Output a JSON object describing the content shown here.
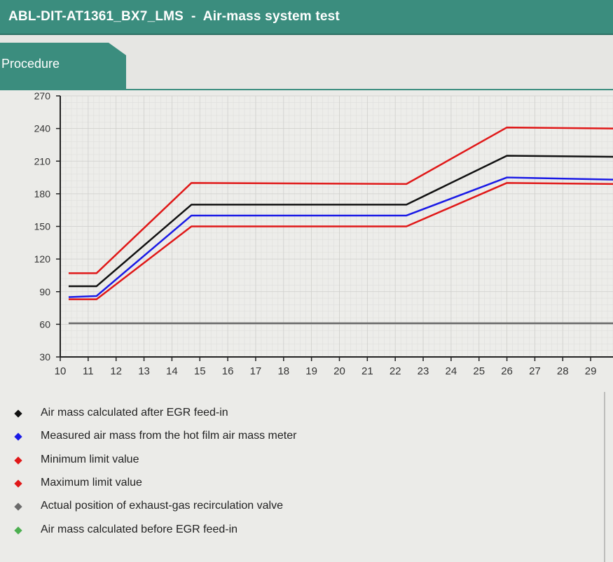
{
  "window": {
    "title": "ABL-DIT-AT1361_BX7_LMS  -  Air-mass system test"
  },
  "tabs": [
    {
      "label": "Procedure"
    }
  ],
  "chart_data": {
    "type": "line",
    "xlim": [
      10,
      29.8
    ],
    "ylim": [
      30,
      270
    ],
    "xticks": [
      10,
      11,
      12,
      13,
      14,
      15,
      16,
      17,
      18,
      19,
      20,
      21,
      22,
      23,
      24,
      25,
      26,
      27,
      28,
      29
    ],
    "yticks": [
      30,
      60,
      90,
      120,
      150,
      180,
      210,
      240,
      270
    ],
    "grid": true,
    "legend_position": "bottom",
    "series": [
      {
        "name": "Air mass calculated after EGR feed-in",
        "color": "#111111",
        "x": [
          10.3,
          11.3,
          14.7,
          22.4,
          26.0,
          29.8
        ],
        "y": [
          95,
          95,
          170,
          170,
          215,
          214
        ]
      },
      {
        "name": "Measured air mass from the hot film air mass meter",
        "color": "#1a1ae6",
        "x": [
          10.3,
          11.3,
          14.7,
          22.4,
          26.0,
          29.8
        ],
        "y": [
          85,
          86,
          160,
          160,
          195,
          193
        ]
      },
      {
        "name": "Minimum limit value",
        "color": "#e01818",
        "x": [
          10.3,
          11.3,
          14.7,
          22.4,
          26.0,
          29.8
        ],
        "y": [
          83,
          83,
          150,
          150,
          190,
          189
        ]
      },
      {
        "name": "Maximum limit value",
        "color": "#e01818",
        "x": [
          10.3,
          11.3,
          14.7,
          22.4,
          26.0,
          29.8
        ],
        "y": [
          107,
          107,
          190,
          189,
          241,
          240
        ]
      },
      {
        "name": "Actual position of exhaust-gas recirculation valve",
        "color": "#6b6b6b",
        "x": [
          10.3,
          29.8
        ],
        "y": [
          61,
          61
        ]
      },
      {
        "name": "Air mass calculated before EGR feed-in",
        "color": "#4caf50",
        "x": [],
        "y": []
      }
    ]
  }
}
